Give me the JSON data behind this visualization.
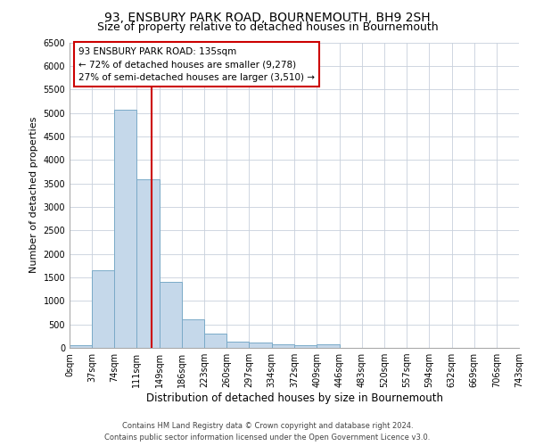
{
  "title": "93, ENSBURY PARK ROAD, BOURNEMOUTH, BH9 2SH",
  "subtitle": "Size of property relative to detached houses in Bournemouth",
  "xlabel": "Distribution of detached houses by size in Bournemouth",
  "ylabel": "Number of detached properties",
  "footer_line1": "Contains HM Land Registry data © Crown copyright and database right 2024.",
  "footer_line2": "Contains public sector information licensed under the Open Government Licence v3.0.",
  "bin_edges": [
    0,
    37,
    74,
    111,
    149,
    186,
    223,
    260,
    297,
    334,
    372,
    409,
    446,
    483,
    520,
    557,
    594,
    632,
    669,
    706,
    743
  ],
  "bar_values": [
    65,
    1650,
    5060,
    3590,
    1400,
    610,
    295,
    140,
    115,
    80,
    50,
    70,
    0,
    0,
    0,
    0,
    0,
    0,
    0,
    0
  ],
  "bar_color": "#c5d8ea",
  "bar_edge_color": "#7aaac8",
  "property_size": 135,
  "property_label": "93 ENSBURY PARK ROAD: 135sqm",
  "annotation_line1": "← 72% of detached houses are smaller (9,278)",
  "annotation_line2": "27% of semi-detached houses are larger (3,510) →",
  "vline_color": "#cc0000",
  "annotation_box_color": "#ffffff",
  "annotation_box_edge": "#cc0000",
  "ylim": [
    0,
    6500
  ],
  "background_color": "#ffffff",
  "grid_color": "#c8d0dc",
  "title_fontsize": 10,
  "subtitle_fontsize": 9,
  "axis_label_fontsize": 8.5,
  "tick_fontsize": 7,
  "annotation_fontsize": 7.5,
  "ylabel_fontsize": 8
}
